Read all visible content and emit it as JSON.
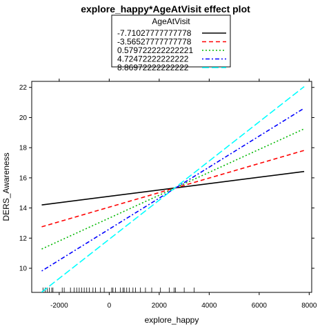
{
  "chart_data": {
    "type": "line",
    "title": "explore_happy*AgeAtVisit effect plot",
    "xlabel": "explore_happy",
    "ylabel": "DERS_Awareness",
    "xlim": [
      -3100,
      8100
    ],
    "ylim": [
      8.4,
      22.4
    ],
    "x_ticks": [
      -2000,
      0,
      2000,
      4000,
      6000,
      8000
    ],
    "x_tick_labels": [
      "-2000",
      "0",
      "2000",
      "4000",
      "6000",
      "8000"
    ],
    "y_ticks": [
      10,
      12,
      14,
      16,
      18,
      20,
      22
    ],
    "y_tick_labels": [
      "10",
      "12",
      "14",
      "16",
      "18",
      "20",
      "22"
    ],
    "grid": false,
    "legend": {
      "title": "AgeAtVisit",
      "position": "top-center"
    },
    "series": [
      {
        "name": "-7.71027777777778",
        "color": "#000000",
        "dash": "solid",
        "x": [
          -2700,
          7800
        ],
        "y": [
          14.2,
          16.42
        ]
      },
      {
        "name": "-3.56527777777778",
        "color": "#ff0000",
        "dash": "dashed",
        "x": [
          -2700,
          7800
        ],
        "y": [
          12.75,
          17.82
        ]
      },
      {
        "name": "0.579722222222221",
        "color": "#00b800",
        "dash": "dotted",
        "x": [
          -2700,
          7800
        ],
        "y": [
          11.28,
          19.25
        ]
      },
      {
        "name": "4.72472222222222",
        "color": "#0000ff",
        "dash": "dotdash",
        "x": [
          -2700,
          7800
        ],
        "y": [
          9.82,
          20.62
        ]
      },
      {
        "name": "8.86972222222222",
        "color": "#00ffff",
        "dash": "longdash",
        "x": [
          -2700,
          7800
        ],
        "y": [
          8.42,
          22.05
        ]
      }
    ],
    "rug": [
      -2650,
      -2560,
      -2480,
      -2400,
      -2300,
      -2250,
      -1880,
      -1800,
      -1550,
      -1400,
      -1300,
      -1200,
      -1100,
      -1000,
      -900,
      -800,
      -650,
      -550,
      -350,
      -200,
      100,
      150,
      250,
      450,
      550,
      600,
      700,
      800,
      950,
      1050,
      1250,
      1450,
      1700,
      2050,
      2400,
      2600,
      2650,
      3000,
      3400
    ]
  }
}
